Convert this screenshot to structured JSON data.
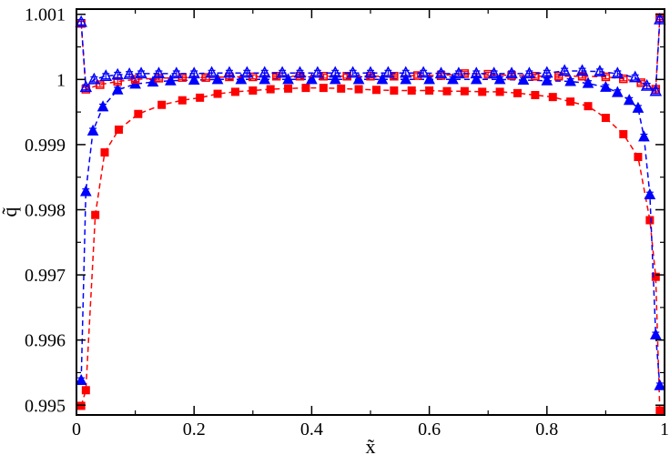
{
  "chart_data": {
    "type": "scatter",
    "title": "",
    "xlabel": "x̃",
    "ylabel": "q̃",
    "xlim": [
      0,
      1
    ],
    "ylim": [
      0.99485,
      1.00108
    ],
    "grid": false,
    "legend": "none",
    "x_ticks": [
      0,
      0.2,
      0.4,
      0.6,
      0.8,
      1
    ],
    "x_tick_labels": [
      "0",
      "0.2",
      "0.4",
      "0.6",
      "0.8",
      "1"
    ],
    "y_ticks": [
      0.995,
      0.996,
      0.997,
      0.998,
      0.999,
      1,
      1.001
    ],
    "y_tick_labels": [
      "0.995",
      "0.996",
      "0.997",
      "0.998",
      "0.999",
      "1",
      "1.001"
    ],
    "series": [
      {
        "color": "#ff0000",
        "marker": "square-filled",
        "line": "dashed",
        "x": [
          0.008,
          0.016,
          0.032,
          0.048,
          0.072,
          0.105,
          0.145,
          0.18,
          0.21,
          0.24,
          0.27,
          0.3,
          0.33,
          0.36,
          0.39,
          0.42,
          0.45,
          0.48,
          0.51,
          0.54,
          0.57,
          0.6,
          0.63,
          0.66,
          0.69,
          0.72,
          0.75,
          0.78,
          0.81,
          0.84,
          0.87,
          0.9,
          0.93,
          0.955,
          0.975,
          0.985,
          0.992
        ],
        "y": [
          0.99499,
          0.99523,
          0.99792,
          0.99888,
          0.99923,
          0.99947,
          0.99961,
          0.99968,
          0.99972,
          0.99978,
          0.99981,
          0.99983,
          0.99985,
          0.99986,
          0.99987,
          0.99987,
          0.99986,
          0.99985,
          0.99984,
          0.99983,
          0.99983,
          0.99983,
          0.99982,
          0.99982,
          0.99981,
          0.99981,
          0.99979,
          0.99976,
          0.99973,
          0.99966,
          0.99959,
          0.99941,
          0.99916,
          0.99881,
          0.99784,
          0.99697,
          0.99492
        ],
        "err": [
          3e-05,
          3e-05,
          3e-05,
          3e-05,
          3e-05,
          3e-05,
          3e-05,
          3e-05,
          3e-05,
          3e-05,
          3e-05,
          3e-05,
          3e-05,
          3e-05,
          3e-05,
          3e-05,
          3e-05,
          3e-05,
          3e-05,
          3e-05,
          3e-05,
          3e-05,
          3e-05,
          3e-05,
          3e-05,
          3e-05,
          3e-05,
          3e-05,
          3e-05,
          3e-05,
          3e-05,
          3e-05,
          3e-05,
          3e-05,
          3e-05,
          3e-05,
          3e-05
        ]
      },
      {
        "color": "#0000ff",
        "marker": "triangle-filled",
        "line": "dashed",
        "x": [
          0.008,
          0.016,
          0.028,
          0.045,
          0.07,
          0.1,
          0.13,
          0.16,
          0.2,
          0.24,
          0.28,
          0.32,
          0.36,
          0.4,
          0.44,
          0.48,
          0.52,
          0.56,
          0.6,
          0.64,
          0.68,
          0.72,
          0.76,
          0.8,
          0.84,
          0.87,
          0.9,
          0.92,
          0.94,
          0.955,
          0.965,
          0.975,
          0.985,
          0.992
        ],
        "y": [
          0.99538,
          0.99828,
          0.99921,
          0.99958,
          0.99984,
          0.99993,
          0.99996,
          0.99998,
          0.99999,
          1.0,
          1.0,
          1.0,
          1.0,
          1.0,
          1.0,
          1.0,
          1.0,
          1.0,
          1.0,
          1.0,
          1.0,
          1.0,
          0.99999,
          0.99998,
          0.99997,
          0.99994,
          0.99988,
          0.9998,
          0.99968,
          0.99956,
          0.99912,
          0.99823,
          0.99608,
          0.9953
        ],
        "err": [
          4e-05,
          4e-05,
          4e-05,
          4e-05,
          4e-05,
          4e-05,
          4e-05,
          4e-05,
          4e-05,
          4e-05,
          4e-05,
          4e-05,
          4e-05,
          4e-05,
          4e-05,
          4e-05,
          4e-05,
          4e-05,
          4e-05,
          4e-05,
          4e-05,
          4e-05,
          4e-05,
          4e-05,
          4e-05,
          4e-05,
          4e-05,
          4e-05,
          4e-05,
          4e-05,
          4e-05,
          4e-05,
          4e-05,
          4e-05
        ]
      },
      {
        "color": "#ff0000",
        "marker": "square-open",
        "line": "dashed",
        "x": [
          0.008,
          0.016,
          0.04,
          0.07,
          0.1,
          0.14,
          0.18,
          0.22,
          0.26,
          0.3,
          0.34,
          0.38,
          0.42,
          0.46,
          0.5,
          0.54,
          0.58,
          0.62,
          0.66,
          0.7,
          0.74,
          0.78,
          0.82,
          0.86,
          0.9,
          0.93,
          0.96,
          0.985,
          0.992
        ],
        "y": [
          1.00086,
          0.99985,
          0.99992,
          0.99997,
          1.0,
          1.00002,
          1.00003,
          1.00003,
          1.00004,
          1.00004,
          1.00005,
          1.00005,
          1.00005,
          1.00005,
          1.00005,
          1.00005,
          1.00006,
          1.00006,
          1.00009,
          1.00008,
          1.00006,
          1.00005,
          1.00005,
          1.00005,
          1.00004,
          1.00001,
          0.99995,
          0.99985,
          1.00095
        ],
        "err": [
          3e-05,
          3e-05,
          3e-05,
          3e-05,
          3e-05,
          3e-05,
          3e-05,
          3e-05,
          3e-05,
          3e-05,
          3e-05,
          3e-05,
          3e-05,
          3e-05,
          3e-05,
          3e-05,
          3e-05,
          3e-05,
          3e-05,
          3e-05,
          3e-05,
          3e-05,
          3e-05,
          3e-05,
          3e-05,
          3e-05,
          3e-05,
          3e-05,
          3e-05
        ]
      },
      {
        "color": "#0000ff",
        "marker": "triangle-open",
        "line": "dashed",
        "x": [
          0.008,
          0.016,
          0.03,
          0.05,
          0.07,
          0.09,
          0.11,
          0.14,
          0.17,
          0.2,
          0.23,
          0.26,
          0.29,
          0.32,
          0.35,
          0.38,
          0.41,
          0.44,
          0.47,
          0.5,
          0.53,
          0.56,
          0.59,
          0.62,
          0.65,
          0.68,
          0.71,
          0.74,
          0.77,
          0.8,
          0.83,
          0.86,
          0.89,
          0.92,
          0.95,
          0.97,
          0.985,
          0.992
        ],
        "y": [
          1.00088,
          0.99988,
          1.0,
          1.00005,
          1.00007,
          1.00008,
          1.00009,
          1.00009,
          1.00009,
          1.00009,
          1.0001,
          1.0001,
          1.0001,
          1.0001,
          1.0001,
          1.0001,
          1.0001,
          1.0001,
          1.0001,
          1.0001,
          1.0001,
          1.0001,
          1.0001,
          1.00009,
          1.00009,
          1.00009,
          1.00009,
          1.00009,
          1.00009,
          1.0001,
          1.00013,
          1.00013,
          1.00012,
          1.00009,
          1.00003,
          0.9999,
          0.99982,
          1.00092
        ],
        "err": [
          4e-05,
          4e-05,
          4e-05,
          4e-05,
          4e-05,
          4e-05,
          4e-05,
          4e-05,
          4e-05,
          4e-05,
          4e-05,
          4e-05,
          4e-05,
          4e-05,
          4e-05,
          4e-05,
          4e-05,
          4e-05,
          4e-05,
          4e-05,
          4e-05,
          4e-05,
          4e-05,
          4e-05,
          4e-05,
          4e-05,
          4e-05,
          4e-05,
          4e-05,
          4e-05,
          4e-05,
          4e-05,
          4e-05,
          4e-05,
          4e-05,
          4e-05,
          4e-05,
          4e-05
        ]
      }
    ]
  }
}
